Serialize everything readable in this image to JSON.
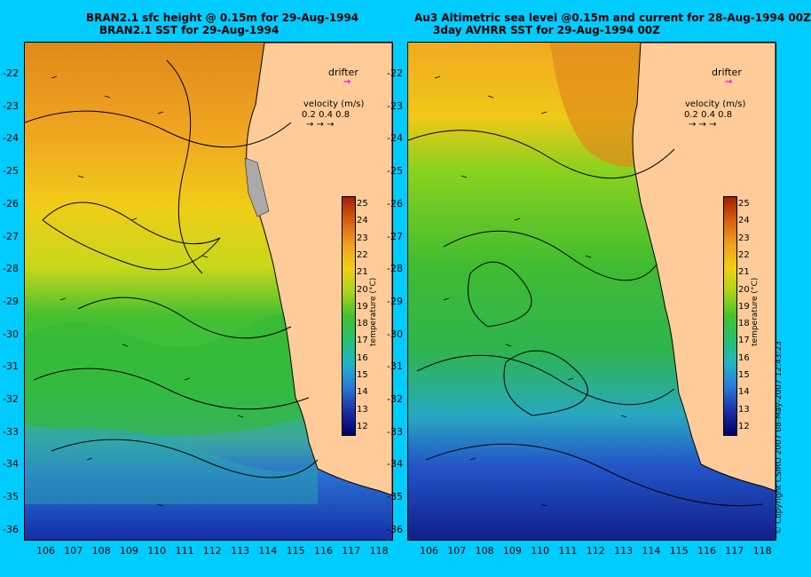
{
  "left": {
    "title_line1": "BRAN2.1 sfc height @ 0.15m for 29-Aug-1994",
    "title_line2": "BRAN2.1 SST for 29-Aug-1994"
  },
  "right": {
    "title_line1": "Au3 Altimetric sea level  @0.15m and current for 28-Aug-1994 00Z",
    "title_line2": "3day AVHRR SST for 29-Aug-1994 00Z"
  },
  "y_ticks": [
    "-22",
    "-23",
    "-24",
    "-25",
    "-26",
    "-27",
    "-28",
    "-29",
    "-30",
    "-31",
    "-32",
    "-33",
    "-34",
    "-35",
    "-36"
  ],
  "x_ticks": [
    "106",
    "107",
    "108",
    "109",
    "110",
    "111",
    "112",
    "113",
    "114",
    "115",
    "116",
    "117",
    "118"
  ],
  "overlay": {
    "drifter": "drifter",
    "velocity_title": "velocity (m/s)",
    "velocity_scale": "0.2 0.4 0.8",
    "velocity_arrows": "→ → →"
  },
  "colorbar": {
    "labels": [
      "25",
      "24",
      "23",
      "22",
      "21",
      "20",
      "19",
      "18",
      "17",
      "16",
      "15",
      "14",
      "13",
      "12"
    ],
    "title": "temperature (°C)"
  },
  "copyright": "© Copyright CSIRO 2007  08-May-2007 12:43:23",
  "colors": {
    "background": "#00ccff",
    "land": "#ffcc99",
    "drifter": "#ff00ff"
  }
}
